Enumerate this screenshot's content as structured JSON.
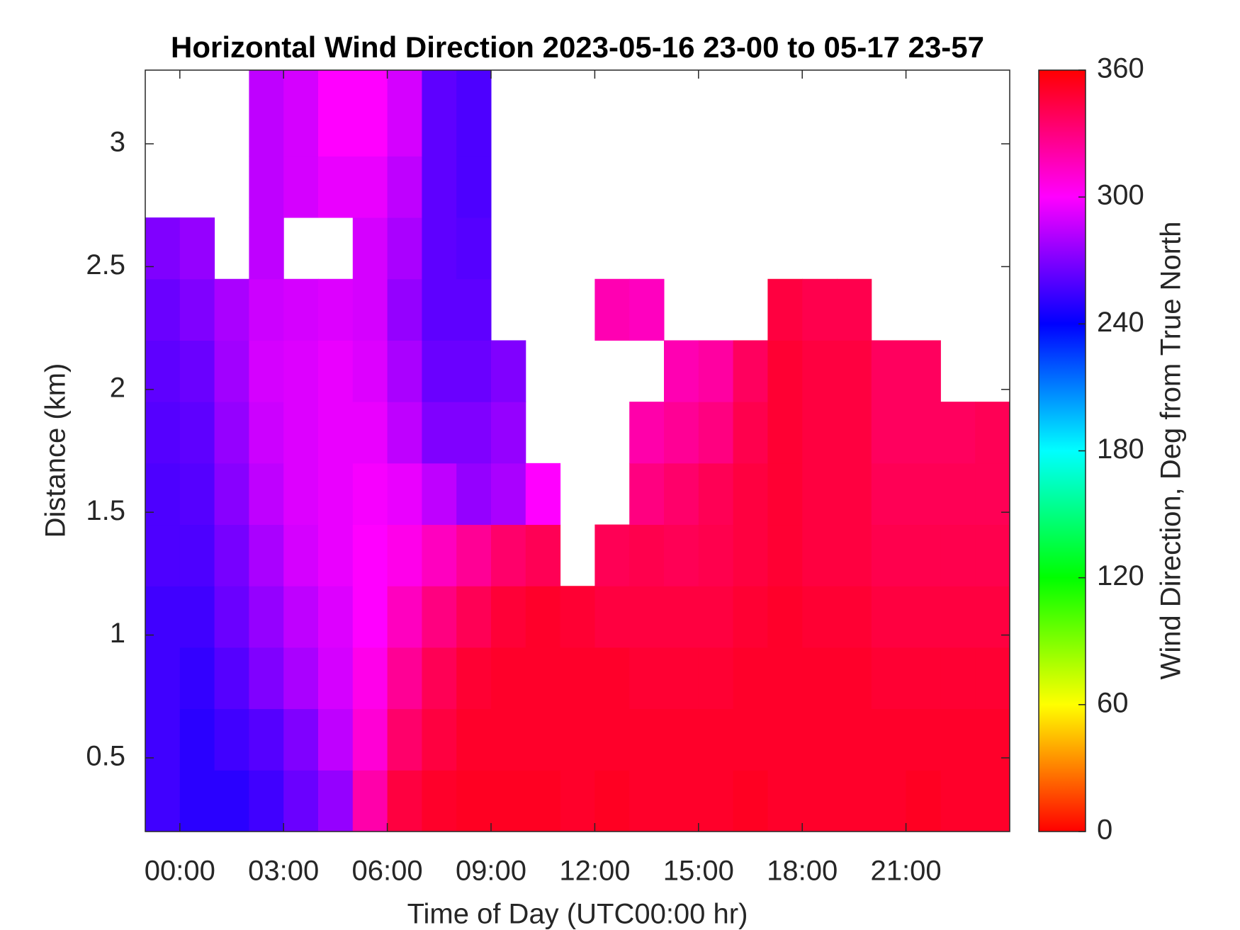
{
  "chart_data": {
    "type": "heatmap",
    "title": "Horizontal Wind Direction 2023-05-16 23-00 to 05-17 23-57",
    "x_label": "Time of Day (UTC00:00 hr)",
    "y_label": "Distance (km)",
    "colorbar_label": "Wind Direction, Deg from True North",
    "colormap": "hsv",
    "x_edges": [
      -1,
      0,
      1,
      2,
      3,
      4,
      5,
      6,
      7,
      8,
      9,
      10,
      11,
      12,
      13,
      14,
      15,
      16,
      17,
      18,
      19,
      20,
      21,
      22,
      23,
      24
    ],
    "y_edges": [
      0.2,
      0.45,
      0.7,
      0.95,
      1.2,
      1.45,
      1.7,
      1.95,
      2.2,
      2.45,
      2.7,
      2.95,
      3.3
    ],
    "z": [
      [
        255,
        250,
        250,
        255,
        265,
        275,
        320,
        345,
        350,
        352,
        352,
        352,
        350,
        352,
        350,
        350,
        350,
        352,
        350,
        350,
        350,
        350,
        352,
        350,
        350
      ],
      [
        255,
        250,
        255,
        260,
        270,
        285,
        310,
        335,
        345,
        350,
        350,
        350,
        350,
        350,
        350,
        350,
        350,
        350,
        350,
        350,
        350,
        350,
        350,
        350,
        350
      ],
      [
        255,
        252,
        260,
        270,
        280,
        290,
        305,
        325,
        340,
        348,
        350,
        350,
        350,
        350,
        348,
        348,
        348,
        350,
        350,
        350,
        350,
        348,
        348,
        348,
        348
      ],
      [
        255,
        255,
        265,
        275,
        285,
        292,
        300,
        315,
        330,
        340,
        347,
        350,
        348,
        345,
        345,
        345,
        345,
        348,
        350,
        348,
        348,
        345,
        345,
        345,
        345
      ],
      [
        258,
        258,
        268,
        280,
        290,
        295,
        300,
        305,
        315,
        325,
        335,
        340,
        null,
        340,
        342,
        340,
        342,
        345,
        348,
        345,
        345,
        342,
        342,
        342,
        342
      ],
      [
        258,
        260,
        272,
        285,
        292,
        295,
        298,
        295,
        285,
        275,
        280,
        300,
        null,
        null,
        330,
        335,
        340,
        345,
        348,
        345,
        345,
        340,
        340,
        340,
        340
      ],
      [
        260,
        262,
        275,
        288,
        292,
        295,
        295,
        285,
        270,
        270,
        275,
        null,
        null,
        null,
        320,
        325,
        330,
        342,
        348,
        345,
        345,
        338,
        338,
        338,
        340
      ],
      [
        262,
        265,
        278,
        290,
        292,
        295,
        292,
        280,
        265,
        265,
        270,
        null,
        null,
        null,
        null,
        318,
        322,
        338,
        348,
        345,
        345,
        338,
        338,
        null,
        null
      ],
      [
        265,
        270,
        280,
        288,
        290,
        292,
        290,
        275,
        262,
        262,
        null,
        null,
        null,
        318,
        315,
        null,
        null,
        null,
        345,
        342,
        342,
        null,
        null,
        null,
        null
      ],
      [
        270,
        275,
        null,
        285,
        null,
        null,
        290,
        280,
        262,
        260,
        null,
        null,
        null,
        null,
        null,
        null,
        null,
        null,
        null,
        null,
        null,
        null,
        null,
        null,
        null
      ],
      [
        null,
        null,
        null,
        285,
        290,
        295,
        295,
        285,
        262,
        258,
        null,
        null,
        null,
        null,
        null,
        null,
        null,
        null,
        null,
        null,
        null,
        null,
        null,
        null,
        null
      ],
      [
        null,
        null,
        null,
        285,
        290,
        300,
        300,
        290,
        262,
        258,
        null,
        null,
        null,
        null,
        null,
        null,
        null,
        null,
        null,
        null,
        null,
        null,
        null,
        null,
        null
      ]
    ],
    "xlim": [
      -1,
      24
    ],
    "xticks": [
      {
        "value": 0,
        "label": "00:00"
      },
      {
        "value": 3,
        "label": "03:00"
      },
      {
        "value": 6,
        "label": "06:00"
      },
      {
        "value": 9,
        "label": "09:00"
      },
      {
        "value": 12,
        "label": "12:00"
      },
      {
        "value": 15,
        "label": "15:00"
      },
      {
        "value": 18,
        "label": "18:00"
      },
      {
        "value": 21,
        "label": "21:00"
      }
    ],
    "ylim": [
      0.2,
      3.3
    ],
    "yticks": [
      0.5,
      1,
      1.5,
      2,
      2.5,
      3
    ],
    "clim": [
      0,
      360
    ],
    "cticks": [
      0,
      60,
      120,
      180,
      240,
      300,
      360
    ]
  }
}
